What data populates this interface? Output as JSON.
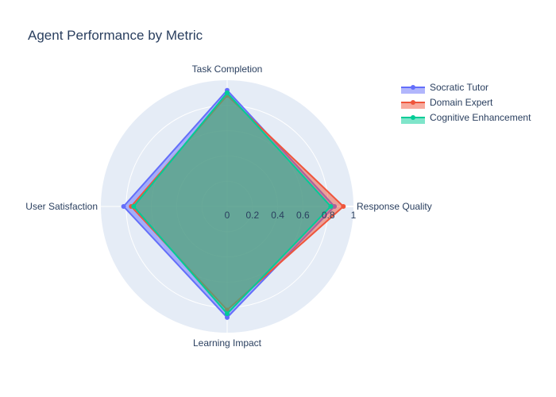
{
  "chart_data": {
    "type": "radar",
    "title": "Agent Performance by Metric",
    "axes": [
      "Task Completion",
      "Response Quality",
      "Learning Impact",
      "User Satisfaction"
    ],
    "radial_range": [
      0,
      1
    ],
    "radial_ticks": [
      "0",
      "0.2",
      "0.4",
      "0.6",
      "0.8",
      "1"
    ],
    "grid": true,
    "legend_position": "top-right",
    "series": [
      {
        "name": "Socratic Tutor",
        "values": [
          0.92,
          0.85,
          0.88,
          0.82
        ],
        "color": "#636efa"
      },
      {
        "name": "Domain Expert",
        "values": [
          0.88,
          0.92,
          0.82,
          0.76
        ],
        "color": "#ef553b"
      },
      {
        "name": "Cognitive Enhancement",
        "values": [
          0.9,
          0.82,
          0.85,
          0.74
        ],
        "color": "#00cc96"
      }
    ]
  }
}
